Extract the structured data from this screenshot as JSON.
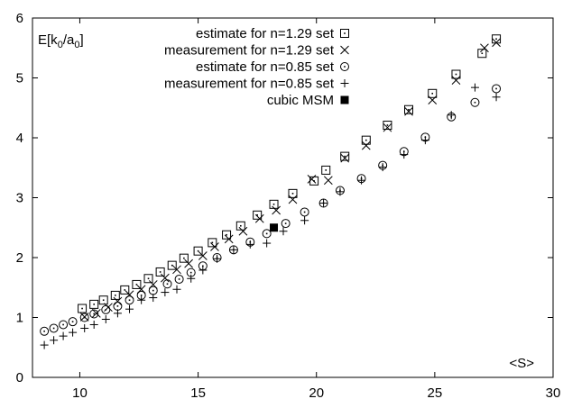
{
  "chart_data": {
    "type": "scatter",
    "title": "",
    "xlabel": "<S>",
    "ylabel": "E[k₀/a₀]",
    "ylabel_main": "E[k",
    "ylabel_sub1": "0",
    "ylabel_mid": "/a",
    "ylabel_sub2": "0",
    "ylabel_end": "]",
    "xlim": [
      8,
      30
    ],
    "ylim": [
      0,
      6
    ],
    "xticks": [
      10,
      15,
      20,
      25,
      30
    ],
    "yticks": [
      0,
      1,
      2,
      3,
      4,
      5,
      6
    ],
    "grid": false,
    "legend_position": "top-right",
    "series": [
      {
        "name": "estimate for n=1.29 set",
        "marker": "open-square",
        "points": [
          [
            10.1,
            1.15
          ],
          [
            10.6,
            1.22
          ],
          [
            11.0,
            1.29
          ],
          [
            11.5,
            1.37
          ],
          [
            11.9,
            1.46
          ],
          [
            12.4,
            1.55
          ],
          [
            12.9,
            1.65
          ],
          [
            13.4,
            1.76
          ],
          [
            13.9,
            1.87
          ],
          [
            14.4,
            1.99
          ],
          [
            15.0,
            2.11
          ],
          [
            15.6,
            2.25
          ],
          [
            16.2,
            2.38
          ],
          [
            16.8,
            2.53
          ],
          [
            17.5,
            2.71
          ],
          [
            18.2,
            2.89
          ],
          [
            19.0,
            3.07
          ],
          [
            19.9,
            3.28
          ],
          [
            20.4,
            3.46
          ],
          [
            21.2,
            3.69
          ],
          [
            22.1,
            3.96
          ],
          [
            23.0,
            4.21
          ],
          [
            23.9,
            4.47
          ],
          [
            24.9,
            4.74
          ],
          [
            25.9,
            5.06
          ],
          [
            27.0,
            5.41
          ],
          [
            27.6,
            5.65
          ]
        ]
      },
      {
        "name": "measurement for n=1.29 set",
        "marker": "cross",
        "points": [
          [
            10.2,
            1.01
          ],
          [
            10.7,
            1.07
          ],
          [
            11.2,
            1.17
          ],
          [
            11.6,
            1.27
          ],
          [
            12.1,
            1.38
          ],
          [
            12.6,
            1.47
          ],
          [
            13.1,
            1.55
          ],
          [
            13.6,
            1.66
          ],
          [
            14.1,
            1.8
          ],
          [
            14.6,
            1.9
          ],
          [
            15.2,
            2.03
          ],
          [
            15.7,
            2.18
          ],
          [
            16.3,
            2.31
          ],
          [
            16.9,
            2.44
          ],
          [
            17.6,
            2.65
          ],
          [
            18.3,
            2.79
          ],
          [
            19.0,
            2.97
          ],
          [
            19.8,
            3.31
          ],
          [
            20.5,
            3.29
          ],
          [
            21.2,
            3.66
          ],
          [
            22.1,
            3.87
          ],
          [
            23.0,
            4.17
          ],
          [
            23.9,
            4.44
          ],
          [
            24.9,
            4.63
          ],
          [
            25.9,
            4.96
          ],
          [
            27.1,
            5.5
          ],
          [
            27.6,
            5.59
          ]
        ]
      },
      {
        "name": "estimate for n=0.85 set",
        "marker": "open-circle",
        "points": [
          [
            8.5,
            0.77
          ],
          [
            8.9,
            0.82
          ],
          [
            9.3,
            0.88
          ],
          [
            9.7,
            0.93
          ],
          [
            10.2,
            1.0
          ],
          [
            10.6,
            1.06
          ],
          [
            11.1,
            1.13
          ],
          [
            11.6,
            1.19
          ],
          [
            12.1,
            1.29
          ],
          [
            12.6,
            1.37
          ],
          [
            13.1,
            1.45
          ],
          [
            13.7,
            1.56
          ],
          [
            14.2,
            1.64
          ],
          [
            14.7,
            1.75
          ],
          [
            15.2,
            1.86
          ],
          [
            15.8,
            2.0
          ],
          [
            16.5,
            2.13
          ],
          [
            17.2,
            2.26
          ],
          [
            17.9,
            2.4
          ],
          [
            18.7,
            2.57
          ],
          [
            19.5,
            2.76
          ],
          [
            20.3,
            2.91
          ],
          [
            21.0,
            3.12
          ],
          [
            21.9,
            3.32
          ],
          [
            22.8,
            3.54
          ],
          [
            23.7,
            3.77
          ],
          [
            24.6,
            4.01
          ],
          [
            25.7,
            4.35
          ],
          [
            26.7,
            4.59
          ],
          [
            27.6,
            4.82
          ]
        ]
      },
      {
        "name": "measurement for n=0.85 set",
        "marker": "plus",
        "points": [
          [
            8.5,
            0.54
          ],
          [
            8.9,
            0.62
          ],
          [
            9.3,
            0.69
          ],
          [
            9.7,
            0.75
          ],
          [
            10.2,
            0.82
          ],
          [
            10.6,
            0.88
          ],
          [
            11.1,
            0.97
          ],
          [
            11.6,
            1.07
          ],
          [
            12.1,
            1.14
          ],
          [
            12.6,
            1.29
          ],
          [
            13.1,
            1.33
          ],
          [
            13.6,
            1.42
          ],
          [
            14.1,
            1.47
          ],
          [
            14.7,
            1.65
          ],
          [
            15.2,
            1.79
          ],
          [
            15.8,
            1.98
          ],
          [
            16.5,
            2.13
          ],
          [
            17.2,
            2.22
          ],
          [
            17.9,
            2.24
          ],
          [
            18.6,
            2.44
          ],
          [
            19.5,
            2.62
          ],
          [
            20.3,
            2.91
          ],
          [
            21.0,
            3.1
          ],
          [
            21.9,
            3.29
          ],
          [
            22.8,
            3.51
          ],
          [
            23.7,
            3.72
          ],
          [
            24.6,
            3.96
          ],
          [
            25.7,
            4.38
          ],
          [
            26.7,
            4.84
          ],
          [
            27.6,
            4.68
          ]
        ]
      },
      {
        "name": "cubic MSM",
        "marker": "filled-square",
        "points": [
          [
            18.2,
            2.5
          ]
        ]
      }
    ]
  }
}
